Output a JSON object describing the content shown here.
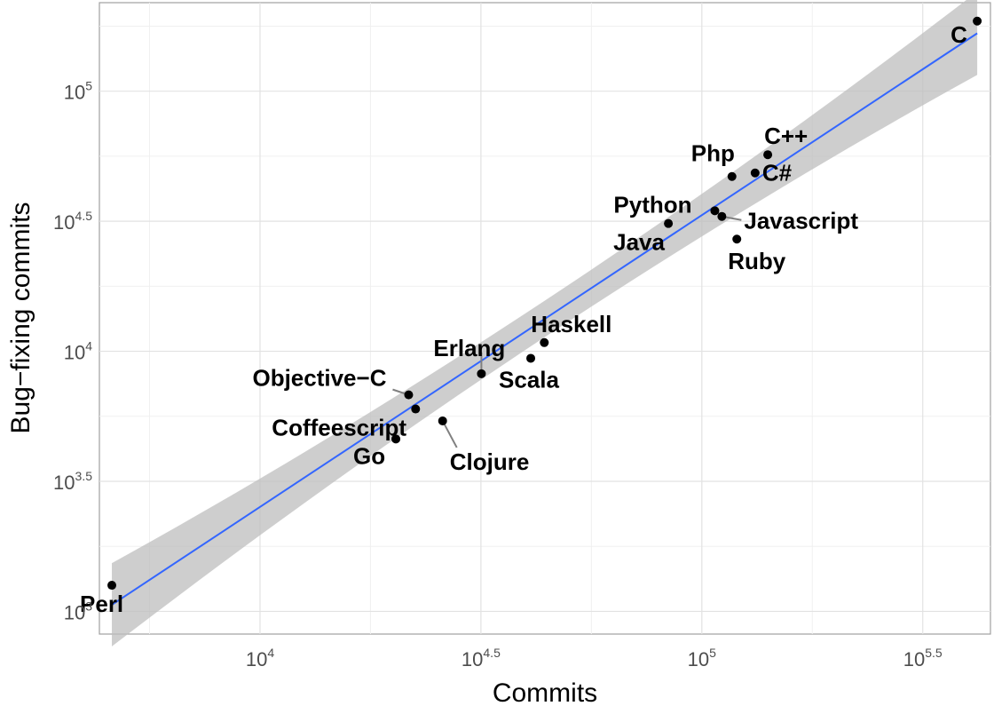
{
  "chart_data": {
    "type": "scatter",
    "xlabel": "Commits",
    "ylabel": "Bug−fixing commits",
    "x_scale": "log10",
    "y_scale": "log10",
    "xlim": [
      4330,
      450000
    ],
    "ylim": [
      818,
      219000
    ],
    "x_ticks": [
      {
        "base": "10",
        "exp": "4",
        "value": 10000
      },
      {
        "base": "10",
        "exp": "4.5",
        "value": 31623
      },
      {
        "base": "10",
        "exp": "5",
        "value": 100000
      },
      {
        "base": "10",
        "exp": "5.5",
        "value": 316228
      }
    ],
    "y_ticks": [
      {
        "base": "10",
        "exp": "3",
        "value": 1000
      },
      {
        "base": "10",
        "exp": "3.5",
        "value": 3162
      },
      {
        "base": "10",
        "exp": "4",
        "value": 10000
      },
      {
        "base": "10",
        "exp": "4.5",
        "value": 31623
      },
      {
        "base": "10",
        "exp": "5",
        "value": 100000
      }
    ],
    "grid": true,
    "points": [
      {
        "label": "C",
        "x": 420000,
        "y": 186000
      },
      {
        "label": "C++",
        "x": 141000,
        "y": 57000
      },
      {
        "label": "C#",
        "x": 132000,
        "y": 48500
      },
      {
        "label": "Php",
        "x": 117000,
        "y": 47000
      },
      {
        "label": "Python",
        "x": 107000,
        "y": 34700
      },
      {
        "label": "Javascript",
        "x": 111000,
        "y": 33000
      },
      {
        "label": "Ruby",
        "x": 120000,
        "y": 27000
      },
      {
        "label": "Java",
        "x": 84000,
        "y": 31000
      },
      {
        "label": "Haskell",
        "x": 44000,
        "y": 10800
      },
      {
        "label": "Scala",
        "x": 41000,
        "y": 9400
      },
      {
        "label": "Erlang",
        "x": 31700,
        "y": 8200
      },
      {
        "label": "Objective−C",
        "x": 21700,
        "y": 6800
      },
      {
        "label": "Coffeescript",
        "x": 22500,
        "y": 6000
      },
      {
        "label": "Clojure",
        "x": 25900,
        "y": 5400
      },
      {
        "label": "Go",
        "x": 20300,
        "y": 4600
      },
      {
        "label": "Perl",
        "x": 4620,
        "y": 1260
      }
    ],
    "fit": {
      "x0": 4620,
      "y0": 1060,
      "x1": 420000,
      "y1": 167000
    },
    "fit_color": "#3366ff",
    "band_color": "#bebebe",
    "point_color": "#000000"
  }
}
